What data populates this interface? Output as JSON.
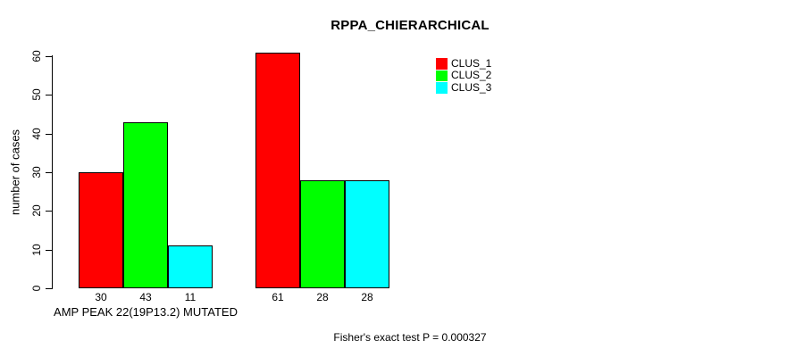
{
  "page": {
    "background": "#ffffff",
    "axis_color": "#000000",
    "text_color": "#000000"
  },
  "chart_data": {
    "type": "bar",
    "title": "RPPA_CHIERARCHICAL",
    "ylabel": "number of cases",
    "xlabel": "AMP PEAK 22(19P13.2) MUTATED",
    "ylim": [
      0,
      60
    ],
    "yticks": [
      0,
      10,
      20,
      30,
      40,
      50,
      60
    ],
    "grid": false,
    "legend_position": "top-right",
    "series": [
      {
        "name": "CLUS_1",
        "color": "#ff0000",
        "values": [
          30,
          61
        ]
      },
      {
        "name": "CLUS_2",
        "color": "#00ff00",
        "values": [
          43,
          28
        ]
      },
      {
        "name": "CLUS_3",
        "color": "#00ffff",
        "values": [
          11,
          28
        ]
      }
    ],
    "bar_value_labels": [
      [
        "30",
        "43",
        "11"
      ],
      [
        "61",
        "28",
        "28"
      ]
    ],
    "annotation": "Fisher's exact test P = 0.000327"
  }
}
